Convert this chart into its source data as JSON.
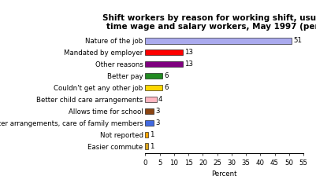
{
  "title": "Shift workers by reason for working shift, usual full-\ntime wage and salary workers, May 1997 (percent)",
  "categories": [
    "Easier commute",
    "Not reported",
    "Better arrangements, care of family members",
    "Allows time for school",
    "Better child care arrangements",
    "Couldn't get any other job",
    "Better pay",
    "Other reasons",
    "Mandated by employer",
    "Nature of the job"
  ],
  "values": [
    1,
    1,
    3,
    3,
    4,
    6,
    6,
    13,
    13,
    51
  ],
  "colors": [
    "#DAA520",
    "#FFA500",
    "#4169E1",
    "#8B4513",
    "#FFB6C1",
    "#FFD700",
    "#228B22",
    "#800080",
    "#FF0000",
    "#AAAAEE"
  ],
  "xlabel": "Percent",
  "xlim": [
    0,
    55
  ],
  "xticks": [
    0,
    5,
    10,
    15,
    20,
    25,
    30,
    35,
    40,
    45,
    50,
    55
  ],
  "background_color": "#FFFFFF",
  "title_fontsize": 7.5,
  "label_fontsize": 6.2,
  "value_fontsize": 6.2
}
